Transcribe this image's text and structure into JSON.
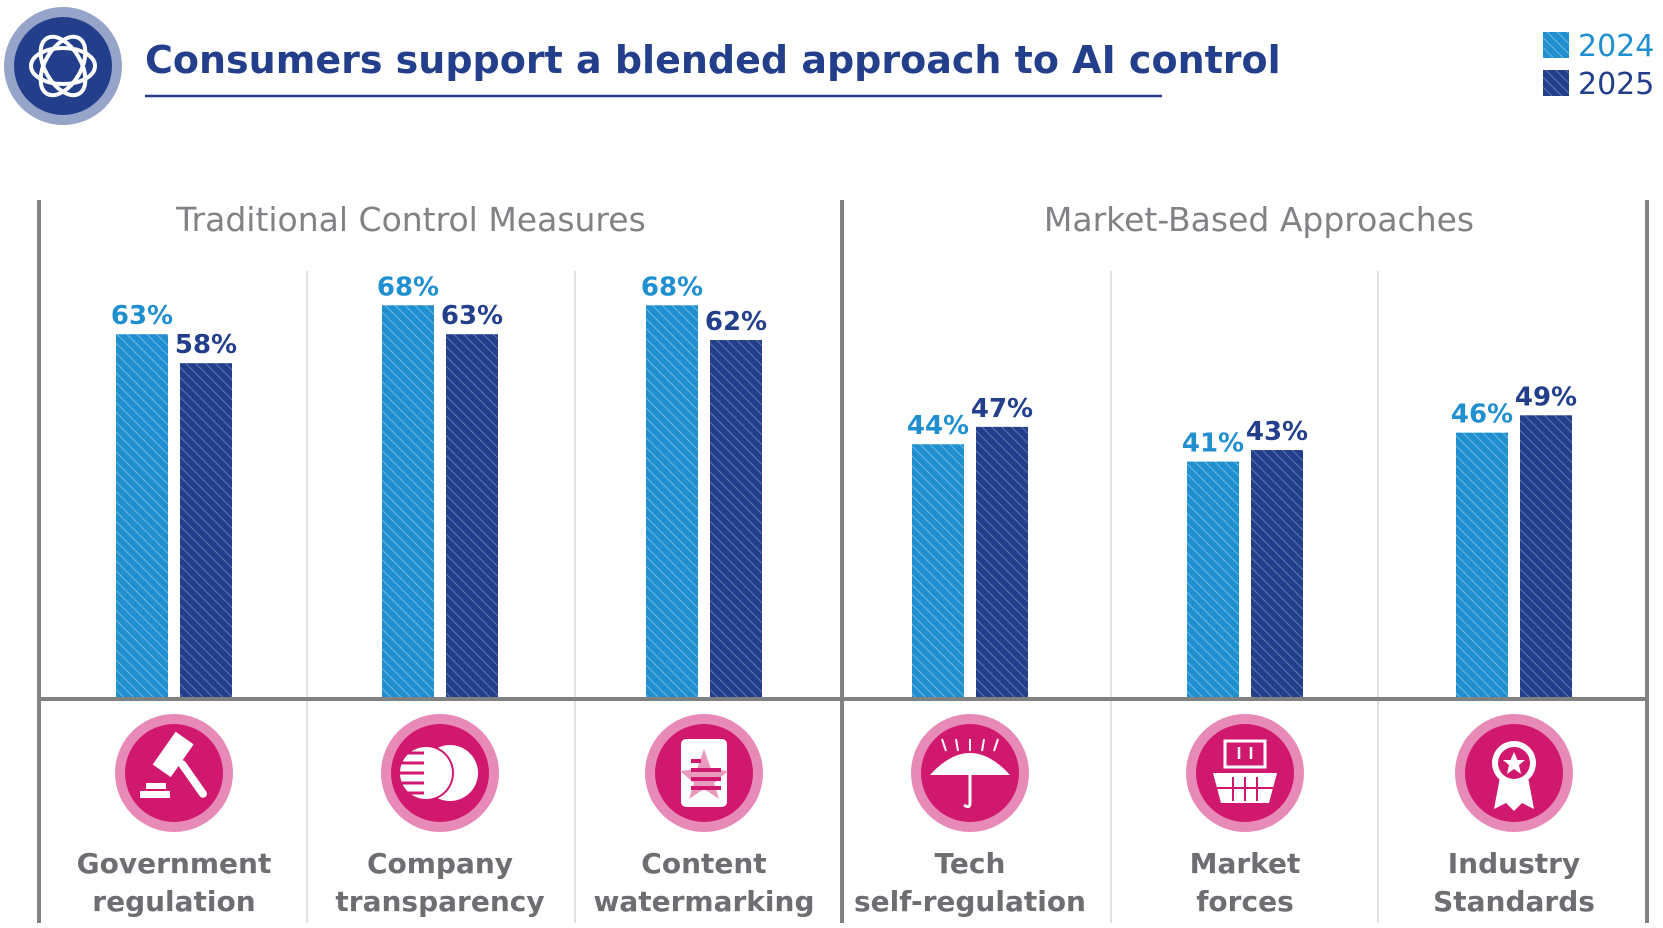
{
  "chart_data": {
    "type": "bar",
    "title": "Consumers support a blended approach to AI control",
    "groups": [
      {
        "name": "Traditional Control Measures",
        "categories": [
          0,
          1,
          2
        ]
      },
      {
        "name": "Market-Based Approaches",
        "categories": [
          3,
          4,
          5
        ]
      }
    ],
    "categories": [
      {
        "line1": "Government",
        "line2": "regulation",
        "icon": "gavel-icon"
      },
      {
        "line1": "Company",
        "line2": "transparency",
        "icon": "coins-transparency-icon"
      },
      {
        "line1": "Content",
        "line2": "watermarking",
        "icon": "watermark-document-icon"
      },
      {
        "line1": "Tech",
        "line2": "self-regulation",
        "icon": "tech-umbrella-icon"
      },
      {
        "line1": "Market",
        "line2": "forces",
        "icon": "market-basket-icon"
      },
      {
        "line1": "Industry",
        "line2": "Standards",
        "icon": "award-ribbon-icon"
      }
    ],
    "series": [
      {
        "name": "2024",
        "values": [
          63,
          68,
          68,
          44,
          41,
          46
        ],
        "labels": [
          "63%",
          "68%",
          "68%",
          "44%",
          "41%",
          "46%"
        ],
        "color": "#1f8fd0"
      },
      {
        "name": "2025",
        "values": [
          58,
          63,
          62,
          47,
          43,
          49
        ],
        "labels": [
          "58%",
          "63%",
          "62%",
          "47%",
          "43%",
          "49%"
        ],
        "color": "#233f8c"
      }
    ],
    "ylim": [
      0,
      100
    ],
    "grid": false,
    "legend_position": "top-right",
    "colors": {
      "icon": "#d0186f",
      "icon_ring": "#e88ab8",
      "axis": "#808282",
      "text": "#6d6e71"
    }
  }
}
